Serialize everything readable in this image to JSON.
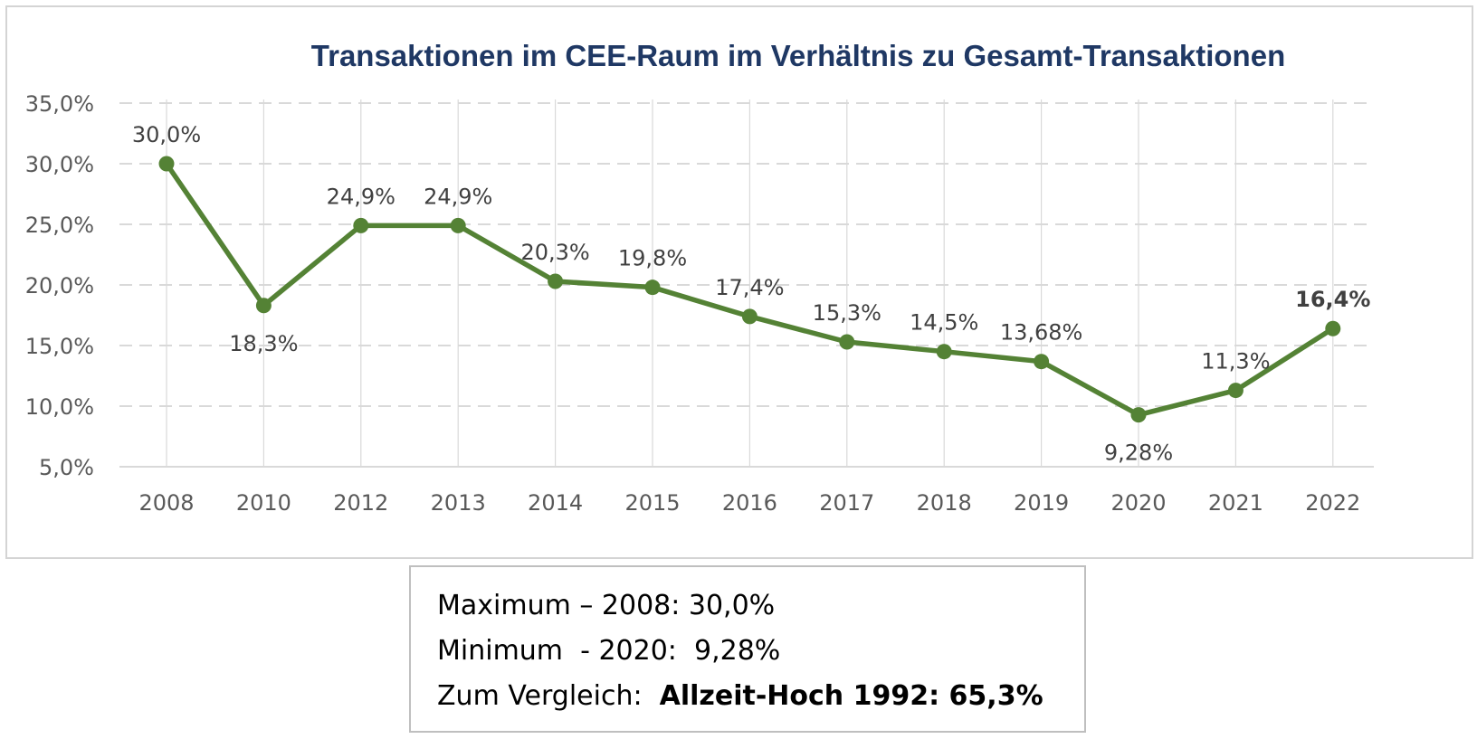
{
  "chart_data": {
    "type": "line",
    "title": "Transaktionen im CEE-Raum im Verhältnis zu Gesamt-Transaktionen",
    "categories": [
      "2008",
      "2010",
      "2012",
      "2013",
      "2014",
      "2015",
      "2016",
      "2017",
      "2018",
      "2019",
      "2020",
      "2021",
      "2022"
    ],
    "series": [
      {
        "values": [
          30.0,
          18.3,
          24.9,
          24.9,
          20.3,
          19.8,
          17.4,
          15.3,
          14.5,
          13.68,
          9.28,
          11.3,
          16.4
        ],
        "labels": [
          "30,0%",
          "18,3%",
          "24,9%",
          "24,9%",
          "20,3%",
          "19,8%",
          "17,4%",
          "15,3%",
          "14,5%",
          "13,68%",
          "9,28%",
          "11,3%",
          "16,4%"
        ],
        "label_position": [
          "above",
          "below",
          "above",
          "above",
          "above",
          "above",
          "above",
          "above",
          "above",
          "above",
          "below",
          "above",
          "above"
        ],
        "bold_labels": [
          "16,4%"
        ],
        "color": "#548235"
      }
    ],
    "ylim": [
      5,
      35
    ],
    "yticks": [
      5,
      10,
      15,
      20,
      25,
      30,
      35
    ],
    "ytick_labels": [
      "5,0%",
      "10,0%",
      "15,0%",
      "20,0%",
      "25,0%",
      "30,0%",
      "35,0%"
    ],
    "xlabel": "",
    "ylabel": "",
    "grid": "horizontal dashed",
    "vertical_gridlines": true,
    "legend": "none"
  },
  "summary": {
    "line1": "Maximum – 2008: 30,0%",
    "line2": "Minimum  - 2020:  9,28%",
    "line3_prefix": "Zum Vergleich:  ",
    "line3_bold": "Allzeit-Hoch 1992: 65,3%"
  },
  "colors": {
    "line": "#548235",
    "title": "#1f3864",
    "grid": "#d9d9d9",
    "ticks": "#595959",
    "labels": "#404040"
  }
}
